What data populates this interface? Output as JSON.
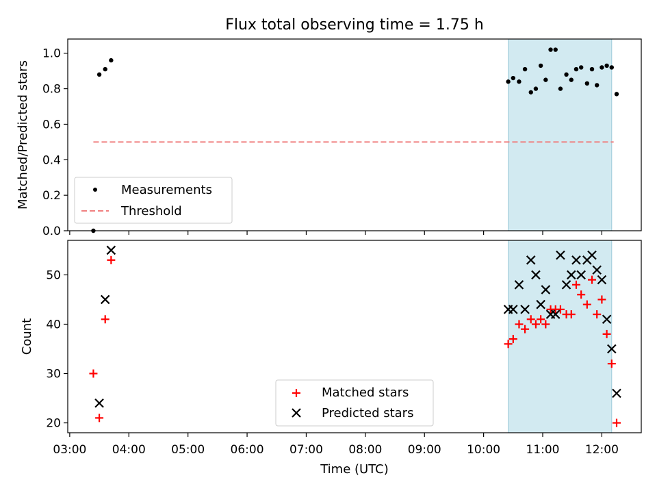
{
  "chart_data": [
    {
      "type": "scatter",
      "title": "Flux total observing time = 1.75 h",
      "xlabel": "",
      "ylabel": "Matched/Predicted stars",
      "xlim": [
        "02:58",
        "12:40"
      ],
      "ylim": [
        0,
        1.08
      ],
      "yticks": [
        "0.0",
        "0.2",
        "0.4",
        "0.6",
        "0.8",
        "1.0"
      ],
      "highlight_span": [
        "10:25",
        "12:10"
      ],
      "legend_position": "lower-left",
      "series": [
        {
          "name": "Measurements",
          "marker": "dot",
          "color": "#000000",
          "points": [
            [
              "03:24",
              0.0
            ],
            [
              "03:30",
              0.88
            ],
            [
              "03:36",
              0.91
            ],
            [
              "03:42",
              0.96
            ],
            [
              "10:25",
              0.84
            ],
            [
              "10:30",
              0.86
            ],
            [
              "10:36",
              0.84
            ],
            [
              "10:42",
              0.91
            ],
            [
              "10:48",
              0.78
            ],
            [
              "10:53",
              0.8
            ],
            [
              "10:58",
              0.93
            ],
            [
              "11:03",
              0.85
            ],
            [
              "11:08",
              1.02
            ],
            [
              "11:13",
              1.02
            ],
            [
              "11:18",
              0.8
            ],
            [
              "11:24",
              0.88
            ],
            [
              "11:29",
              0.85
            ],
            [
              "11:34",
              0.91
            ],
            [
              "11:39",
              0.92
            ],
            [
              "11:45",
              0.83
            ],
            [
              "11:50",
              0.91
            ],
            [
              "11:55",
              0.82
            ],
            [
              "12:00",
              0.92
            ],
            [
              "12:05",
              0.93
            ],
            [
              "12:10",
              0.92
            ],
            [
              "12:15",
              0.77
            ]
          ]
        },
        {
          "name": "Threshold",
          "marker": "dashed-line",
          "color": "#f08080",
          "points": [
            [
              "03:24",
              0.5
            ],
            [
              "12:12",
              0.5
            ]
          ]
        }
      ]
    },
    {
      "type": "scatter",
      "xlabel": "Time (UTC)",
      "ylabel": "Count",
      "xlim": [
        "02:58",
        "12:40"
      ],
      "ylim": [
        18,
        57
      ],
      "yticks": [
        "20",
        "30",
        "40",
        "50"
      ],
      "xticks": [
        "03:00",
        "04:00",
        "05:00",
        "06:00",
        "07:00",
        "08:00",
        "09:00",
        "10:00",
        "11:00",
        "12:00"
      ],
      "highlight_span": [
        "10:25",
        "12:10"
      ],
      "legend_position": "lower-center",
      "series": [
        {
          "name": "Matched stars",
          "marker": "plus",
          "color": "#ff0000",
          "points": [
            [
              "03:24",
              30
            ],
            [
              "03:30",
              21
            ],
            [
              "03:36",
              41
            ],
            [
              "03:42",
              53
            ],
            [
              "10:25",
              36
            ],
            [
              "10:30",
              37
            ],
            [
              "10:36",
              40
            ],
            [
              "10:42",
              39
            ],
            [
              "10:48",
              41
            ],
            [
              "10:53",
              40
            ],
            [
              "10:58",
              41
            ],
            [
              "11:03",
              40
            ],
            [
              "11:08",
              43
            ],
            [
              "11:13",
              43
            ],
            [
              "11:18",
              43
            ],
            [
              "11:24",
              42
            ],
            [
              "11:29",
              42
            ],
            [
              "11:34",
              48
            ],
            [
              "11:39",
              46
            ],
            [
              "11:45",
              44
            ],
            [
              "11:50",
              49
            ],
            [
              "11:55",
              42
            ],
            [
              "12:00",
              45
            ],
            [
              "12:05",
              38
            ],
            [
              "12:10",
              32
            ],
            [
              "12:15",
              20
            ]
          ]
        },
        {
          "name": "Predicted stars",
          "marker": "x",
          "color": "#000000",
          "points": [
            [
              "03:30",
              24
            ],
            [
              "03:36",
              45
            ],
            [
              "03:42",
              55
            ],
            [
              "10:25",
              43
            ],
            [
              "10:30",
              43
            ],
            [
              "10:36",
              48
            ],
            [
              "10:42",
              43
            ],
            [
              "10:48",
              53
            ],
            [
              "10:53",
              50
            ],
            [
              "10:58",
              44
            ],
            [
              "11:03",
              47
            ],
            [
              "11:08",
              42
            ],
            [
              "11:13",
              42
            ],
            [
              "11:18",
              54
            ],
            [
              "11:24",
              48
            ],
            [
              "11:29",
              50
            ],
            [
              "11:34",
              53
            ],
            [
              "11:39",
              50
            ],
            [
              "11:45",
              53
            ],
            [
              "11:50",
              54
            ],
            [
              "11:55",
              51
            ],
            [
              "12:00",
              49
            ],
            [
              "12:05",
              41
            ],
            [
              "12:10",
              35
            ],
            [
              "12:15",
              26
            ]
          ]
        }
      ]
    }
  ]
}
